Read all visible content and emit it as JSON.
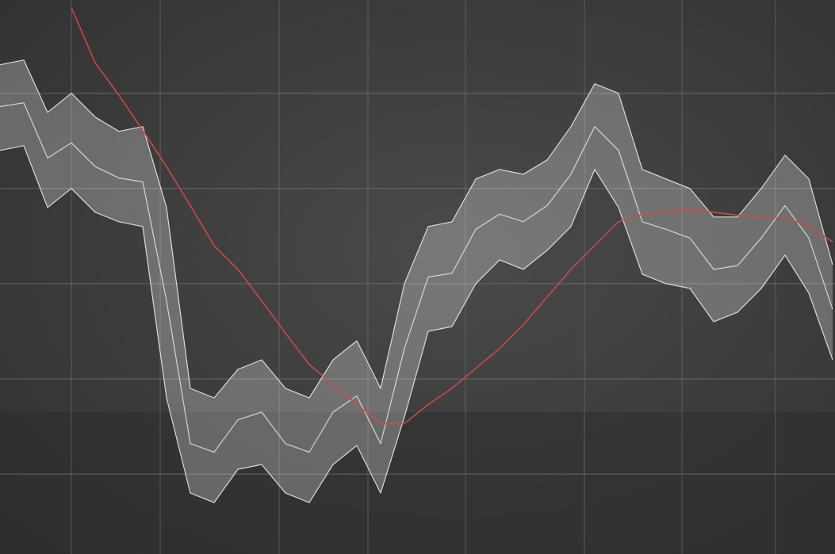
{
  "chart_data": {
    "type": "band-line",
    "x": [
      0,
      3,
      6,
      9,
      12,
      15,
      18,
      21,
      24,
      27,
      30,
      33,
      36,
      39,
      42,
      45,
      48,
      51,
      54,
      57,
      60,
      63,
      66,
      69,
      72,
      75,
      78,
      81,
      84,
      87,
      90,
      93,
      96,
      99,
      102,
      105
    ],
    "series": [
      {
        "color": "#e6e6e6",
        "values": [
          48.6,
          49,
          43.2,
          44.8,
          42.3,
          41.1,
          40.7,
          28.2,
          13.2,
          12.3,
          15.7,
          16.5,
          13.2,
          12.3,
          16.5,
          18.2,
          13.2,
          23.2,
          30.7,
          31.1,
          35.7,
          37.3,
          36.5,
          38.2,
          41.5,
          46.5,
          44,
          36.5,
          35.7,
          34.8,
          31.5,
          31.9,
          34.8,
          38.2,
          34.8,
          27.3
        ]
      },
      {
        "color": "#f2f2f2",
        "values": [
          53,
          53.5,
          48,
          50,
          47.5,
          46,
          46.5,
          38,
          19,
          18,
          21,
          22,
          19,
          18,
          22,
          24,
          19,
          30,
          36,
          36.5,
          41,
          42,
          41.5,
          43,
          46.5,
          51,
          50,
          42,
          41,
          40,
          37,
          37,
          40,
          43.5,
          41,
          32
        ]
      },
      {
        "color": "#f2f2f2",
        "values": [
          44,
          44.5,
          38,
          40,
          37.5,
          36.5,
          36,
          18,
          8,
          7,
          10.5,
          11,
          8,
          7,
          11,
          13,
          8,
          16,
          25,
          25.5,
          30,
          32.5,
          31.5,
          33.5,
          36,
          42,
          38,
          31,
          30,
          29.5,
          26,
          27,
          29.5,
          33,
          29,
          22
        ]
      },
      {
        "color": "#d24a48",
        "values": [
          null,
          null,
          null,
          59,
          53.2,
          49.8,
          46.1,
          42.3,
          38.2,
          34,
          31.5,
          28.2,
          24.8,
          21.5,
          19.4,
          17.3,
          15.3,
          15.3,
          17.3,
          19,
          21.1,
          23.2,
          25.7,
          28.6,
          31.5,
          34,
          36.5,
          37.3,
          37.6,
          37.8,
          37.5,
          37.2,
          37,
          36.9,
          36.1,
          34.4
        ]
      }
    ],
    "xlim": [
      0,
      105.3
    ],
    "ylim": [
      1.6,
      59.8
    ],
    "xticks": [
      9,
      20.2,
      35.2,
      46.4,
      58.7,
      73.7,
      86,
      97.8
    ],
    "yticks": [
      10,
      20,
      30,
      40,
      50
    ],
    "grid": true
  }
}
